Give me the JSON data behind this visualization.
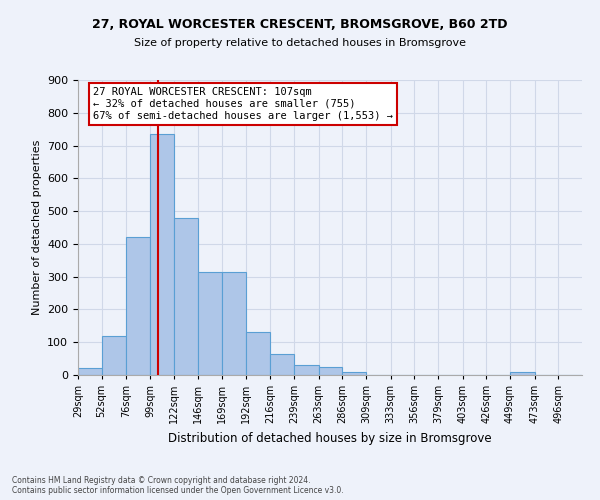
{
  "title1": "27, ROYAL WORCESTER CRESCENT, BROMSGROVE, B60 2TD",
  "title2": "Size of property relative to detached houses in Bromsgrove",
  "xlabel": "Distribution of detached houses by size in Bromsgrove",
  "ylabel": "Number of detached properties",
  "bin_labels": [
    "29sqm",
    "52sqm",
    "76sqm",
    "99sqm",
    "122sqm",
    "146sqm",
    "169sqm",
    "192sqm",
    "216sqm",
    "239sqm",
    "263sqm",
    "286sqm",
    "309sqm",
    "333sqm",
    "356sqm",
    "379sqm",
    "403sqm",
    "426sqm",
    "449sqm",
    "473sqm",
    "496sqm"
  ],
  "bar_heights": [
    20,
    120,
    420,
    735,
    480,
    315,
    315,
    130,
    65,
    30,
    25,
    10,
    0,
    0,
    0,
    0,
    0,
    0,
    10,
    0,
    0
  ],
  "bar_color": "#aec6e8",
  "bar_edge_color": "#5a9fd4",
  "vline_x": 107,
  "vline_color": "#cc0000",
  "annotation_title": "27 ROYAL WORCESTER CRESCENT: 107sqm",
  "annotation_line1": "← 32% of detached houses are smaller (755)",
  "annotation_line2": "67% of semi-detached houses are larger (1,553) →",
  "annotation_box_color": "#cc0000",
  "ylim": [
    0,
    900
  ],
  "yticks": [
    0,
    100,
    200,
    300,
    400,
    500,
    600,
    700,
    800,
    900
  ],
  "grid_color": "#d0d8e8",
  "bg_color": "#eef2fa",
  "footnote1": "Contains HM Land Registry data © Crown copyright and database right 2024.",
  "footnote2": "Contains public sector information licensed under the Open Government Licence v3.0."
}
